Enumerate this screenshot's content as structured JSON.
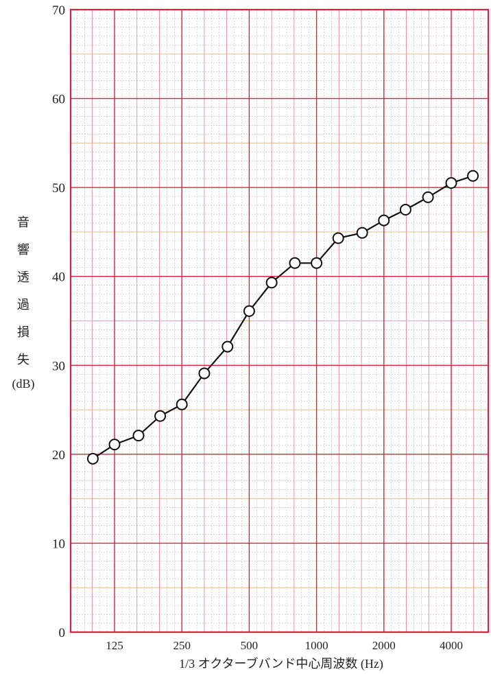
{
  "chart_data": {
    "type": "line",
    "xlabel": "1/3 オクターブバンド中心周波数 (Hz)",
    "ylabel": "音響透過損失(dB)",
    "ylabel_chars": [
      "音",
      "響",
      "透",
      "過",
      "損",
      "失"
    ],
    "ylabel_unit": "(dB)",
    "ylim": [
      0,
      70
    ],
    "yticks": [
      0,
      10,
      20,
      30,
      40,
      50,
      60,
      70
    ],
    "xscale": "log",
    "xticks": [
      {
        "value": 125,
        "label": "125"
      },
      {
        "value": 250,
        "label": "250"
      },
      {
        "value": 500,
        "label": "500"
      },
      {
        "value": 1000,
        "label": "1000"
      },
      {
        "value": 2000,
        "label": "2000"
      },
      {
        "value": 4000,
        "label": "4000"
      }
    ],
    "grid": true,
    "series": [
      {
        "marker": "open-circle",
        "x": [
          100,
          125,
          160,
          200,
          250,
          315,
          400,
          500,
          630,
          800,
          1000,
          1250,
          1600,
          2000,
          2500,
          3150,
          4000,
          5000
        ],
        "y": [
          19.5,
          21.1,
          22.1,
          24.3,
          25.6,
          29.1,
          32.1,
          36.1,
          39.3,
          41.5,
          41.5,
          44.3,
          44.9,
          46.3,
          47.5,
          48.9,
          50.5,
          51.3
        ]
      }
    ]
  }
}
